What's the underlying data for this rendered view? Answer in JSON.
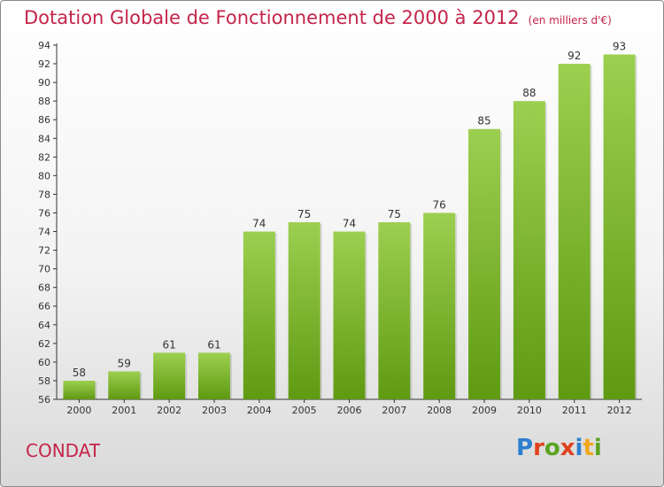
{
  "header": {
    "title": "Dotation Globale de Fonctionnement de 2000 à 2012",
    "subtitle": "(en milliers d'€)"
  },
  "footer": {
    "place": "CONDAT",
    "logo_text": "Proxiti"
  },
  "colors": {
    "title": "#c4254a",
    "bar_top": "#9ccf50",
    "bar_bottom": "#5f9a12",
    "logo_letters": [
      "#2e7fd0",
      "#e0421f",
      "#5aa421",
      "#e0421f",
      "#2e7fd0",
      "#f0a81c",
      "#5aa421"
    ]
  },
  "chart_data": {
    "type": "bar",
    "categories": [
      "2000",
      "2001",
      "2002",
      "2003",
      "2004",
      "2005",
      "2006",
      "2007",
      "2008",
      "2009",
      "2010",
      "2011",
      "2012"
    ],
    "values": [
      58,
      59,
      61,
      61,
      74,
      75,
      74,
      75,
      76,
      85,
      88,
      92,
      93
    ],
    "ylim": [
      56,
      94
    ],
    "yticks": [
      56,
      58,
      60,
      62,
      64,
      66,
      68,
      70,
      72,
      74,
      76,
      78,
      80,
      82,
      84,
      86,
      88,
      90,
      92,
      94
    ],
    "grid": false,
    "data_labels": true
  }
}
